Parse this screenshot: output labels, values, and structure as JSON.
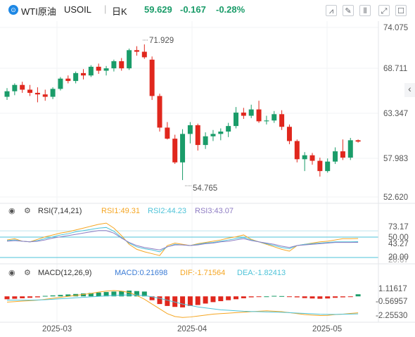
{
  "header": {
    "symbol_name": "WTI原油",
    "symbol_code": "USOIL",
    "interval": "日K",
    "price": "59.629",
    "change": "-0.167",
    "change_pct": "-0.28%",
    "colors": {
      "up": "#1a9c69",
      "down": "#e0271d",
      "accent": "#1e88e5"
    }
  },
  "toolbar": {
    "icons": [
      "chart-type-icon",
      "indicator-icon",
      "settings-icon",
      "fullscreen-icon",
      "more-icon"
    ]
  },
  "main_chart": {
    "price_labels": [
      "74.075",
      "68.711",
      "63.347",
      "57.983",
      "52.620"
    ],
    "high_label": "71.929",
    "low_label": "54.765",
    "collapse_icon": "chevron-left-icon"
  },
  "rsi": {
    "title": "RSI(7,14,21)",
    "rsi1": "RSI1:49.31",
    "rsi2": "RSI2:44.23",
    "rsi3": "RSI3:43.07",
    "axis_labels": [
      "73.17",
      "50.00",
      "43.27",
      "20.00",
      "20.67"
    ],
    "colors": {
      "rsi1": "#f5a623",
      "rsi2": "#4ec3d8",
      "rsi3": "#8e7cc3"
    }
  },
  "macd": {
    "title": "MACD(12,26,9)",
    "macd": "MACD:0.21698",
    "dif": "DIF:-1.71564",
    "dea": "DEA:-1.82413",
    "axis_labels": [
      "1.11617",
      "-0.56957",
      "-2.25530"
    ],
    "colors": {
      "macd": "#3a7bd5",
      "dif": "#f5a623",
      "dea": "#4ec3d8"
    }
  },
  "x_axis": {
    "labels": [
      "2025-03",
      "2025-04",
      "2025-05"
    ]
  },
  "chart_data": {
    "type": "candlestick",
    "price_range": [
      52.62,
      74.075
    ],
    "candles": [
      [
        65.3,
        66.4,
        64.9,
        66.0
      ],
      [
        66.0,
        67.0,
        65.5,
        66.8
      ],
      [
        66.8,
        67.2,
        65.8,
        66.2
      ],
      [
        66.2,
        66.8,
        65.4,
        65.8
      ],
      [
        65.8,
        66.5,
        64.6,
        65.6
      ],
      [
        65.6,
        66.2,
        64.8,
        65.3
      ],
      [
        65.3,
        66.5,
        65.0,
        66.3
      ],
      [
        66.3,
        67.8,
        66.1,
        67.6
      ],
      [
        67.6,
        68.0,
        67.0,
        67.3
      ],
      [
        67.3,
        68.5,
        67.0,
        68.3
      ],
      [
        68.3,
        68.8,
        67.5,
        68.0
      ],
      [
        68.0,
        69.3,
        67.8,
        69.1
      ],
      [
        69.1,
        69.5,
        68.2,
        68.6
      ],
      [
        68.6,
        69.2,
        68.0,
        68.9
      ],
      [
        68.9,
        70.0,
        68.5,
        69.8
      ],
      [
        69.8,
        70.2,
        68.6,
        68.9
      ],
      [
        68.9,
        71.4,
        68.7,
        71.2
      ],
      [
        71.2,
        71.7,
        70.5,
        71.0
      ],
      [
        71.0,
        71.929,
        70.1,
        70.3
      ],
      [
        70.0,
        70.4,
        64.9,
        65.4
      ],
      [
        65.4,
        65.7,
        60.9,
        61.4
      ],
      [
        61.4,
        62.1,
        59.9,
        60.0
      ],
      [
        60.0,
        60.5,
        56.8,
        57.0
      ],
      [
        57.0,
        61.2,
        54.765,
        60.6
      ],
      [
        60.6,
        62.1,
        59.4,
        61.7
      ],
      [
        61.7,
        61.9,
        58.5,
        59.2
      ],
      [
        59.2,
        60.8,
        58.7,
        60.3
      ],
      [
        60.3,
        61.1,
        59.7,
        60.6
      ],
      [
        60.6,
        61.3,
        59.8,
        60.9
      ],
      [
        60.9,
        62.0,
        60.2,
        61.6
      ],
      [
        61.6,
        64.0,
        61.3,
        63.3
      ],
      [
        63.3,
        63.9,
        62.5,
        62.9
      ],
      [
        62.9,
        64.3,
        62.6,
        63.7
      ],
      [
        63.7,
        64.8,
        62.0,
        62.2
      ],
      [
        62.2,
        62.9,
        61.8,
        62.3
      ],
      [
        62.3,
        63.5,
        62.0,
        63.1
      ],
      [
        63.1,
        63.6,
        61.1,
        61.5
      ],
      [
        61.5,
        61.8,
        59.3,
        59.7
      ],
      [
        59.7,
        59.9,
        57.0,
        57.4
      ],
      [
        57.4,
        58.3,
        55.9,
        57.9
      ],
      [
        57.9,
        58.2,
        56.7,
        57.2
      ],
      [
        57.2,
        57.6,
        55.2,
        55.9
      ],
      [
        55.9,
        57.5,
        55.7,
        57.1
      ],
      [
        57.1,
        58.9,
        56.8,
        58.4
      ],
      [
        58.4,
        59.9,
        57.3,
        57.6
      ],
      [
        57.6,
        60.1,
        57.3,
        59.8
      ],
      [
        59.8,
        59.9,
        59.5,
        59.629
      ]
    ],
    "rsi1": [
      47,
      49,
      45,
      44,
      48,
      52,
      55,
      58,
      60,
      63,
      66,
      69,
      72,
      74,
      66,
      54,
      40,
      32,
      28,
      25,
      22,
      38,
      42,
      40,
      38,
      41,
      43,
      45,
      47,
      50,
      52,
      55,
      48,
      44,
      40,
      36,
      32,
      29,
      38,
      40,
      42,
      44,
      45,
      47,
      49,
      49,
      49.31
    ],
    "rsi2": [
      46,
      47,
      45,
      44,
      46,
      49,
      52,
      55,
      57,
      60,
      62,
      64,
      66,
      67,
      61,
      51,
      42,
      36,
      33,
      31,
      28,
      36,
      40,
      39,
      38,
      40,
      42,
      43,
      45,
      47,
      49,
      51,
      47,
      44,
      41,
      38,
      35,
      33,
      38,
      40,
      41,
      42,
      43,
      44,
      44,
      44,
      44.23
    ],
    "rsi3": [
      45,
      46,
      45,
      44,
      45,
      47,
      50,
      52,
      54,
      56,
      58,
      60,
      62,
      62,
      58,
      50,
      43,
      38,
      35,
      33,
      31,
      36,
      39,
      39,
      38,
      39,
      41,
      42,
      44,
      45,
      47,
      49,
      46,
      44,
      42,
      40,
      37,
      35,
      38,
      39,
      40,
      41,
      42,
      43,
      43,
      43,
      43.07
    ],
    "macd_hist": [
      -0.3,
      -0.25,
      -0.2,
      -0.15,
      -0.1,
      0.05,
      0.1,
      0.15,
      0.2,
      0.25,
      0.3,
      0.35,
      0.4,
      0.45,
      0.5,
      0.55,
      0.6,
      0.55,
      0.5,
      -0.4,
      -0.8,
      -1.0,
      -1.1,
      -1.15,
      -1.0,
      -0.9,
      -0.75,
      -0.6,
      -0.5,
      -0.4,
      -0.3,
      -0.2,
      -0.1,
      -0.05,
      0.0,
      0.05,
      0.03,
      -0.02,
      -0.1,
      -0.18,
      -0.22,
      -0.25,
      -0.22,
      -0.15,
      -0.1,
      -0.05,
      0.21698
    ],
    "dif": [
      -0.6,
      -0.55,
      -0.5,
      -0.45,
      -0.4,
      -0.3,
      -0.2,
      -0.1,
      0.0,
      0.1,
      0.2,
      0.3,
      0.45,
      0.55,
      0.6,
      0.55,
      0.4,
      0.1,
      -0.3,
      -0.8,
      -1.3,
      -1.8,
      -2.1,
      -2.2,
      -2.15,
      -2.05,
      -1.95,
      -1.85,
      -1.8,
      -1.75,
      -1.7,
      -1.65,
      -1.6,
      -1.55,
      -1.5,
      -1.55,
      -1.6,
      -1.7,
      -1.8,
      -1.9,
      -1.95,
      -2.0,
      -1.98,
      -1.9,
      -1.85,
      -1.78,
      -1.71564
    ],
    "dea": [
      -0.4,
      -0.4,
      -0.4,
      -0.4,
      -0.38,
      -0.35,
      -0.3,
      -0.25,
      -0.2,
      -0.15,
      -0.1,
      -0.05,
      0.0,
      0.05,
      0.1,
      0.13,
      0.15,
      0.13,
      0.08,
      -0.05,
      -0.2,
      -0.4,
      -0.6,
      -0.8,
      -0.95,
      -1.1,
      -1.2,
      -1.3,
      -1.4,
      -1.45,
      -1.5,
      -1.55,
      -1.58,
      -1.6,
      -1.62,
      -1.64,
      -1.66,
      -1.7,
      -1.74,
      -1.78,
      -1.82,
      -1.86,
      -1.88,
      -1.88,
      -1.86,
      -1.84,
      -1.82413
    ]
  }
}
